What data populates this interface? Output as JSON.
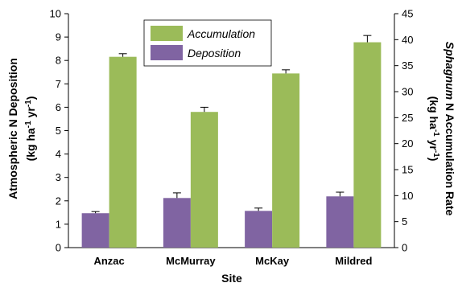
{
  "chart_data": {
    "type": "bar",
    "categories": [
      "Anzac",
      "McMurray",
      "McKay",
      "Mildred"
    ],
    "xlabel": "Site",
    "ylabel_left": {
      "line1": "Atmospheric N Deposition",
      "line2_parts": [
        "(kg ha",
        "-1",
        " yr",
        "-1",
        ")"
      ]
    },
    "ylabel_right": {
      "line1_parts": [
        "Sphagnum",
        " N Accumulation Rate"
      ],
      "line2_parts": [
        "(kg ha",
        "-1",
        " yr",
        "-1",
        ")"
      ]
    },
    "ylim_left": [
      0,
      10
    ],
    "ylim_right": [
      0,
      45
    ],
    "yticks_left": [
      "0",
      "1",
      "2",
      "3",
      "4",
      "5",
      "6",
      "7",
      "8",
      "9",
      "10"
    ],
    "yticks_right": [
      "0",
      "5",
      "10",
      "15",
      "20",
      "25",
      "30",
      "35",
      "40",
      "45"
    ],
    "grid": false,
    "legend_position": "top-center",
    "series": [
      {
        "name": "Deposition",
        "axis": "left",
        "color": "#8064a2",
        "values": [
          1.47,
          2.12,
          1.57,
          2.19
        ],
        "errors": [
          0.07,
          0.22,
          0.12,
          0.18
        ]
      },
      {
        "name": "Accumulation",
        "axis": "right",
        "color": "#9bbb59",
        "values": [
          36.7,
          26.1,
          33.5,
          39.5
        ],
        "errors": [
          0.6,
          0.9,
          0.7,
          1.3
        ]
      }
    ],
    "legend_order": [
      "Accumulation",
      "Deposition"
    ]
  }
}
